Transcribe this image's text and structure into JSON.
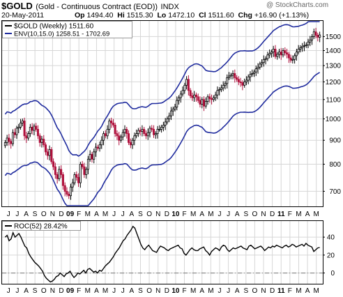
{
  "header": {
    "symbol": "$GOLD",
    "description": "(Gold - Continuous Contract (EOD))",
    "exchange": "INDX",
    "watermark": "@ StockCharts.com",
    "date": "20-May-2011",
    "quote": {
      "open_label": "Op",
      "open": "1494.40",
      "high_label": "Hi",
      "high": "1515.30",
      "low_label": "Lo",
      "low": "1472.10",
      "close_label": "Cl",
      "close": "1511.60",
      "change_label": "Chg",
      "change": "+16.90 (+1.13%)"
    }
  },
  "legend": {
    "price": "$GOLD (Weekly) 1511.60",
    "envelope": "ENV(10,15.0) 1258.51 - 1702.69",
    "roc": "ROC(52) 28.42%"
  },
  "colors": {
    "up_candle": "#000000",
    "down_candle": "#b0103c",
    "envelope": "#1f2b9e",
    "roc_line": "#000000",
    "zero_line": "#777777",
    "grid": "#d6d6d6"
  },
  "chart_data": [
    {
      "type": "candlestick",
      "title": "$GOLD (Weekly)",
      "interval": "weekly",
      "y_scale": "log",
      "ylim": [
        650,
        1620
      ],
      "y_ticks": [
        700,
        800,
        900,
        1000,
        1100,
        1200,
        1300,
        1400,
        1500
      ],
      "x_tick_labels": [
        "J",
        "J",
        "A",
        "S",
        "O",
        "N",
        "D",
        "09",
        "F",
        "M",
        "A",
        "M",
        "J",
        "J",
        "A",
        "S",
        "O",
        "N",
        "D",
        "10",
        "F",
        "M",
        "A",
        "M",
        "J",
        "J",
        "A",
        "S",
        "O",
        "N",
        "D",
        "11",
        "F",
        "M",
        "A",
        "M"
      ],
      "close_series": [
        890,
        910,
        895,
        885,
        935,
        925,
        955,
        960,
        980,
        990,
        920,
        910,
        930,
        960,
        945,
        965,
        950,
        920,
        890,
        905,
        880,
        850,
        835,
        860,
        810,
        790,
        760,
        745,
        780,
        760,
        720,
        700,
        690,
        685,
        715,
        730,
        760,
        750,
        730,
        800,
        790,
        760,
        780,
        820,
        840,
        820,
        850,
        870,
        865,
        880,
        900,
        930,
        920,
        950,
        990,
        980,
        970,
        930,
        920,
        900,
        915,
        935,
        950,
        930,
        890,
        880,
        900,
        920,
        930,
        945,
        940,
        950,
        930,
        920,
        935,
        955,
        950,
        925,
        930,
        950,
        950,
        960,
        970,
        985,
        1000,
        1015,
        1040,
        1050,
        1060,
        1095,
        1110,
        1130,
        1150,
        1180,
        1215,
        1150,
        1120,
        1110,
        1125,
        1115,
        1095,
        1075,
        1100,
        1065,
        1090,
        1115,
        1105,
        1100,
        1110,
        1125,
        1150,
        1155,
        1165,
        1180,
        1190,
        1225,
        1235,
        1240,
        1250,
        1225,
        1215,
        1200,
        1195,
        1180,
        1200,
        1210,
        1230,
        1245,
        1250,
        1260,
        1280,
        1290,
        1310,
        1320,
        1340,
        1345,
        1370,
        1380,
        1390,
        1410,
        1360,
        1375,
        1390,
        1370,
        1400,
        1385,
        1375,
        1350,
        1335,
        1340,
        1365,
        1390,
        1410,
        1420,
        1430,
        1435,
        1440,
        1460,
        1475,
        1500,
        1535,
        1510,
        1495,
        1512
      ]
    },
    {
      "type": "line",
      "title": "ROC(52)",
      "ylim": [
        -12,
        58
      ],
      "y_ticks": [
        0,
        20,
        40
      ],
      "x_tick_labels": [
        "J",
        "J",
        "A",
        "S",
        "O",
        "N",
        "D",
        "09",
        "F",
        "M",
        "A",
        "M",
        "J",
        "J",
        "A",
        "S",
        "O",
        "N",
        "D",
        "10",
        "F",
        "M",
        "A",
        "M",
        "J",
        "J",
        "A",
        "S",
        "O",
        "N",
        "D",
        "11",
        "F",
        "M",
        "A",
        "M"
      ],
      "values": [
        40,
        42,
        36,
        38,
        45,
        40,
        42,
        44,
        40,
        35,
        30,
        28,
        22,
        18,
        15,
        12,
        10,
        8,
        5,
        2,
        -3,
        -6,
        -8,
        -10,
        -9,
        -7,
        -4,
        -3,
        0,
        -2,
        -4,
        -1,
        0,
        2,
        -2,
        -5,
        -3,
        0,
        -1,
        1,
        3,
        0,
        4,
        5,
        3,
        1,
        2,
        0,
        3,
        2,
        5,
        8,
        10,
        12,
        15,
        18,
        22,
        25,
        28,
        32,
        36,
        38,
        42,
        45,
        48,
        52,
        50,
        44,
        38,
        32,
        28,
        26,
        29,
        31,
        28,
        25,
        24,
        23,
        27,
        30,
        29,
        28,
        26,
        25,
        27,
        28,
        29,
        30,
        31,
        28,
        27,
        22,
        20,
        23,
        26,
        28,
        26,
        25,
        25,
        27,
        28,
        29,
        25,
        23,
        20,
        24,
        26,
        28,
        27,
        25,
        29,
        31,
        30,
        26,
        24,
        26,
        28,
        27,
        28,
        29,
        30,
        28,
        27,
        26,
        30,
        31,
        29,
        27,
        28,
        29,
        30,
        28,
        25,
        27,
        29,
        28,
        30,
        29,
        31,
        30,
        29,
        28,
        30,
        31,
        29,
        30,
        32,
        31,
        29,
        30,
        31,
        32,
        30,
        33,
        31,
        30,
        29,
        24,
        26,
        28,
        28.42
      ]
    }
  ]
}
